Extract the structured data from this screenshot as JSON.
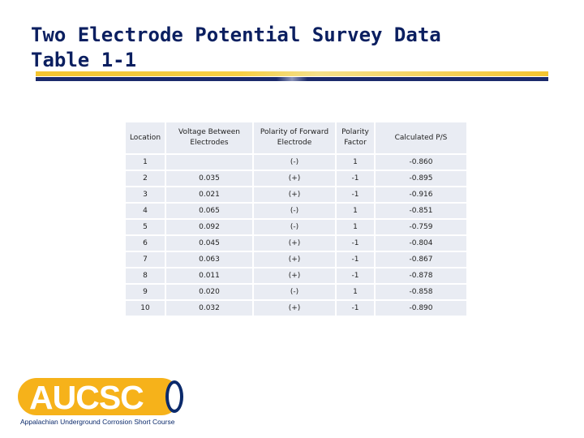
{
  "slide": {
    "title_line1": "Two Electrode Potential Survey Data",
    "title_line2": "Table 1-1"
  },
  "table": {
    "headers": [
      "Location",
      "Voltage Between Electrodes",
      "Polarity of Forward Electrode",
      "Polarity Factor",
      "Calculated P/S"
    ],
    "rows": [
      [
        "1",
        "",
        "(-)",
        "1",
        "-0.860"
      ],
      [
        "2",
        "0.035",
        "(+)",
        "-1",
        "-0.895"
      ],
      [
        "3",
        "0.021",
        "(+)",
        "-1",
        "-0.916"
      ],
      [
        "4",
        "0.065",
        "(-)",
        "1",
        "-0.851"
      ],
      [
        "5",
        "0.092",
        "(-)",
        "1",
        "-0.759"
      ],
      [
        "6",
        "0.045",
        "(+)",
        "-1",
        "-0.804"
      ],
      [
        "7",
        "0.063",
        "(+)",
        "-1",
        "-0.867"
      ],
      [
        "8",
        "0.011",
        "(+)",
        "-1",
        "-0.878"
      ],
      [
        "9",
        "0.020",
        "(-)",
        "1",
        "-0.858"
      ],
      [
        "10",
        "0.032",
        "(+)",
        "-1",
        "-0.890"
      ]
    ]
  },
  "logo": {
    "wordmark": "AUCSC",
    "tagline": "Appalachian Underground Corrosion Short Course"
  },
  "colors": {
    "title": "#0b1f60",
    "accent_gold": "#f4c430",
    "accent_navy": "#1b2a6b",
    "cell_background": "#e9ecf3"
  }
}
